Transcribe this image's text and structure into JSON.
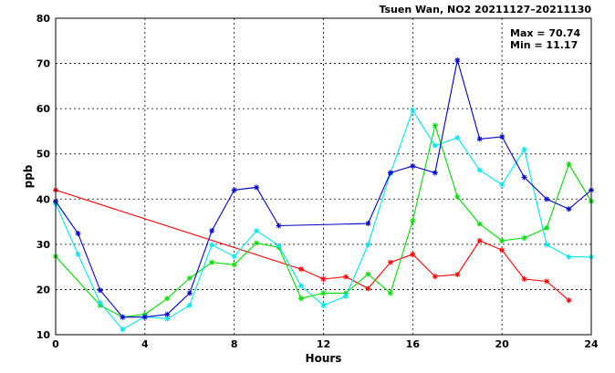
{
  "chart_data": {
    "type": "line",
    "title": "Tsuen Wan, NO2 20211127–20211130",
    "xlabel": "Hours",
    "ylabel": "ppb",
    "xlim": [
      0,
      24
    ],
    "ylim": [
      10,
      80
    ],
    "xticks": [
      0,
      4,
      8,
      12,
      16,
      20,
      24
    ],
    "yticks": [
      10,
      20,
      30,
      40,
      50,
      60,
      70,
      80
    ],
    "grid": true,
    "annotations": {
      "max": "Max = 70.74",
      "min": "Min = 11.17"
    },
    "series": [
      {
        "color": "#ff0000",
        "points": [
          [
            0,
            42
          ],
          [
            11,
            24.5
          ],
          [
            12,
            22.3
          ],
          [
            13,
            22.8
          ],
          [
            14,
            20.2
          ],
          [
            15,
            26
          ],
          [
            16,
            27.8
          ],
          [
            17,
            22.9
          ],
          [
            18,
            23.3
          ],
          [
            19,
            30.8
          ],
          [
            20,
            28.7
          ],
          [
            21,
            22.3
          ],
          [
            22,
            21.8
          ],
          [
            23,
            17.6
          ]
        ]
      },
      {
        "color": "#00dd00",
        "points": [
          [
            0,
            27.3
          ],
          [
            2,
            16.5
          ],
          [
            3,
            13.9
          ],
          [
            4,
            14.5
          ],
          [
            5,
            18
          ],
          [
            6,
            22.5
          ],
          [
            7,
            26
          ],
          [
            8,
            25.5
          ],
          [
            9,
            30.3
          ],
          [
            10,
            29.3
          ],
          [
            11,
            18
          ],
          [
            12,
            19.2
          ],
          [
            13,
            19.2
          ],
          [
            14,
            23.4
          ],
          [
            15,
            19.2
          ],
          [
            16,
            35.2
          ],
          [
            17,
            56.3
          ],
          [
            18,
            40.5
          ],
          [
            19,
            34.5
          ],
          [
            20,
            30.8
          ],
          [
            21,
            31.4
          ],
          [
            22,
            33.6
          ],
          [
            23,
            47.7
          ],
          [
            24,
            39.5
          ]
        ]
      },
      {
        "color": "#00e5ee",
        "points": [
          [
            0,
            39
          ],
          [
            1,
            27.8
          ],
          [
            2,
            17
          ],
          [
            3,
            11.17
          ],
          [
            4,
            14
          ],
          [
            5,
            13.5
          ],
          [
            6,
            16.5
          ],
          [
            7,
            29.9
          ],
          [
            8,
            27.3
          ],
          [
            9,
            33
          ],
          [
            10,
            29.7
          ],
          [
            11,
            20.8
          ],
          [
            12,
            16.5
          ],
          [
            13,
            18.5
          ],
          [
            14,
            29.9
          ],
          [
            15,
            45.7
          ],
          [
            16,
            59.6
          ],
          [
            17,
            51.8
          ],
          [
            18,
            53.6
          ],
          [
            19,
            46.4
          ],
          [
            20,
            43.2
          ],
          [
            21,
            51
          ],
          [
            22,
            29.9
          ],
          [
            23,
            27.2
          ],
          [
            24,
            27.2
          ]
        ]
      },
      {
        "color": "#0000cc",
        "points": [
          [
            0,
            39.5
          ],
          [
            1,
            32.4
          ],
          [
            2,
            19.8
          ],
          [
            3,
            13.9
          ],
          [
            4,
            13.9
          ],
          [
            5,
            14.5
          ],
          [
            6,
            19.2
          ],
          [
            7,
            33
          ],
          [
            8,
            42
          ],
          [
            9,
            42.6
          ],
          [
            10,
            34.1
          ],
          [
            14,
            34.6
          ],
          [
            15,
            45.8
          ],
          [
            16,
            47.3
          ],
          [
            17,
            45.8
          ],
          [
            18,
            70.74
          ],
          [
            19,
            53.3
          ],
          [
            20,
            53.8
          ],
          [
            21,
            44.8
          ],
          [
            22,
            40
          ],
          [
            23,
            37.8
          ],
          [
            24,
            42
          ]
        ]
      }
    ]
  }
}
